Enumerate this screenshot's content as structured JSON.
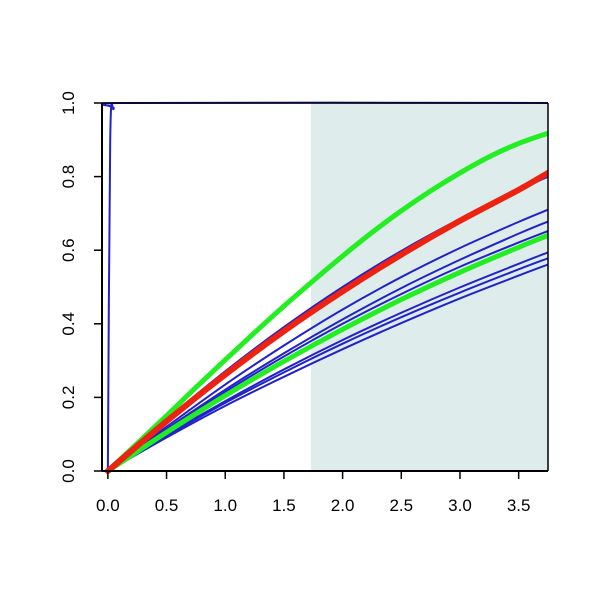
{
  "chart_data": {
    "type": "line",
    "title": "",
    "xlabel": "",
    "ylabel": "",
    "xlim": [
      -0.05,
      3.75
    ],
    "ylim": [
      0.0,
      1.0
    ],
    "x_ticks": [
      "0.0",
      "0.5",
      "1.0",
      "1.5",
      "2.0",
      "2.5",
      "3.0",
      "3.5"
    ],
    "y_ticks": [
      "0.0",
      "0.2",
      "0.4",
      "0.6",
      "0.8",
      "1.0"
    ],
    "x_tick_values": [
      0,
      0.5,
      1.0,
      1.5,
      2.0,
      2.5,
      3.0,
      3.5
    ],
    "y_tick_values": [
      0,
      0.2,
      0.4,
      0.6,
      0.8,
      1.0
    ],
    "shaded_region": {
      "x_from": 1.73,
      "x_to": 3.75,
      "color": "#dfecec"
    },
    "grid": false,
    "legend": "none",
    "colors": {
      "blue": "#2222cc",
      "green": "#22ee22",
      "red": "#ee2211"
    },
    "series": [
      {
        "color": "blue",
        "x": [
          0,
          0.02,
          0.05,
          0.1,
          3.75
        ],
        "y": [
          0,
          0.9,
          0.985,
          1.0,
          1.0
        ]
      },
      {
        "color": "blue",
        "x": [
          0,
          0.5,
          1.0,
          1.5,
          2.0,
          2.5,
          3.0,
          3.5,
          3.75
        ],
        "y": [
          0,
          0.14,
          0.271,
          0.391,
          0.5,
          0.598,
          0.685,
          0.763,
          0.8
        ]
      },
      {
        "color": "blue",
        "x": [
          0,
          0.5,
          1.0,
          1.5,
          2.0,
          2.5,
          3.0,
          3.5,
          3.75
        ],
        "y": [
          0,
          0.12,
          0.235,
          0.341,
          0.439,
          0.527,
          0.606,
          0.677,
          0.71
        ]
      },
      {
        "color": "blue",
        "x": [
          0,
          0.5,
          1.0,
          1.5,
          2.0,
          2.5,
          3.0,
          3.5,
          3.75
        ],
        "y": [
          0,
          0.11,
          0.215,
          0.311,
          0.4,
          0.481,
          0.555,
          0.621,
          0.652
        ]
      },
      {
        "color": "blue",
        "x": [
          0,
          0.5,
          1.0,
          1.5,
          2.0,
          2.5,
          3.0,
          3.5,
          3.75
        ],
        "y": [
          0,
          0.114,
          0.221,
          0.32,
          0.412,
          0.497,
          0.574,
          0.645,
          0.678
        ]
      },
      {
        "color": "blue",
        "x": [
          0,
          0.5,
          1.0,
          1.5,
          2.0,
          2.5,
          3.0,
          3.5,
          3.75
        ],
        "y": [
          0,
          0.098,
          0.19,
          0.276,
          0.356,
          0.43,
          0.499,
          0.563,
          0.594
        ]
      },
      {
        "color": "blue",
        "x": [
          0,
          0.5,
          1.0,
          1.5,
          2.0,
          2.5,
          3.0,
          3.5,
          3.75
        ],
        "y": [
          0,
          0.095,
          0.185,
          0.268,
          0.346,
          0.418,
          0.485,
          0.548,
          0.578
        ]
      },
      {
        "color": "blue",
        "x": [
          0,
          0.5,
          1.0,
          1.5,
          2.0,
          2.5,
          3.0,
          3.5,
          3.75
        ],
        "y": [
          0,
          0.091,
          0.177,
          0.256,
          0.331,
          0.402,
          0.469,
          0.531,
          0.561
        ]
      },
      {
        "color": "green",
        "x": [
          0,
          0.25,
          0.5,
          0.75,
          1.0,
          1.25,
          1.5,
          1.75,
          2.0,
          2.25,
          2.5,
          2.75,
          3.0,
          3.25,
          3.5,
          3.75
        ],
        "y": [
          0,
          0.075,
          0.15,
          0.227,
          0.302,
          0.376,
          0.448,
          0.517,
          0.584,
          0.648,
          0.707,
          0.761,
          0.81,
          0.854,
          0.89,
          0.918
        ]
      },
      {
        "color": "green",
        "x": [
          0,
          0.5,
          1.0,
          1.5,
          2.0,
          2.5,
          3.0,
          3.5,
          3.75
        ],
        "y": [
          0,
          0.105,
          0.205,
          0.298,
          0.385,
          0.466,
          0.54,
          0.608,
          0.64
        ]
      },
      {
        "color": "red",
        "x": [
          0,
          0.5,
          1.0,
          1.5,
          2.0,
          2.5,
          3.0,
          3.5,
          3.75
        ],
        "y": [
          0,
          0.135,
          0.262,
          0.38,
          0.488,
          0.588,
          0.68,
          0.764,
          0.81
        ]
      }
    ]
  }
}
